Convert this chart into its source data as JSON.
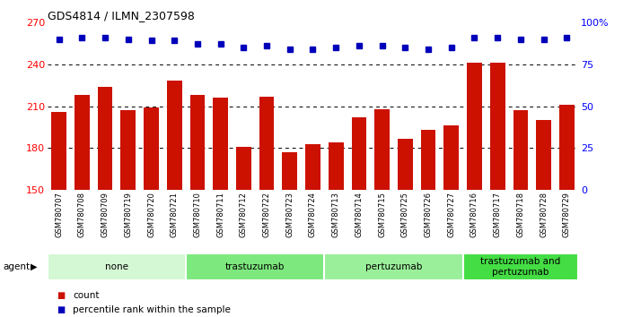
{
  "title": "GDS4814 / ILMN_2307598",
  "samples": [
    "GSM780707",
    "GSM780708",
    "GSM780709",
    "GSM780719",
    "GSM780720",
    "GSM780721",
    "GSM780710",
    "GSM780711",
    "GSM780712",
    "GSM780722",
    "GSM780723",
    "GSM780724",
    "GSM780713",
    "GSM780714",
    "GSM780715",
    "GSM780725",
    "GSM780726",
    "GSM780727",
    "GSM780716",
    "GSM780717",
    "GSM780718",
    "GSM780728",
    "GSM780729"
  ],
  "counts": [
    206,
    218,
    224,
    207,
    209,
    228,
    218,
    216,
    181,
    217,
    177,
    183,
    184,
    202,
    208,
    187,
    193,
    196,
    241,
    241,
    207,
    200,
    211
  ],
  "percentile_ranks": [
    90,
    91,
    91,
    90,
    89,
    89,
    87,
    87,
    85,
    86,
    84,
    84,
    85,
    86,
    86,
    85,
    84,
    85,
    91,
    91,
    90,
    90,
    91
  ],
  "groups": [
    {
      "label": "none",
      "start": 0,
      "end": 5,
      "color": "#d4f7d4"
    },
    {
      "label": "trastuzumab",
      "start": 6,
      "end": 11,
      "color": "#7de87d"
    },
    {
      "label": "pertuzumab",
      "start": 12,
      "end": 17,
      "color": "#9aef9a"
    },
    {
      "label": "trastuzumab and\npertuzumab",
      "start": 18,
      "end": 22,
      "color": "#44dd44"
    }
  ],
  "ylim_left": [
    150,
    270
  ],
  "ylim_right": [
    0,
    100
  ],
  "yticks_left": [
    150,
    180,
    210,
    240,
    270
  ],
  "yticks_right": [
    0,
    25,
    50,
    75,
    100
  ],
  "bar_color": "#cc1100",
  "dot_color": "#0000bb",
  "bar_width": 0.65,
  "background_color": "#ffffff",
  "gridline_color": "#000000",
  "sample_bg_color": "#cccccc"
}
